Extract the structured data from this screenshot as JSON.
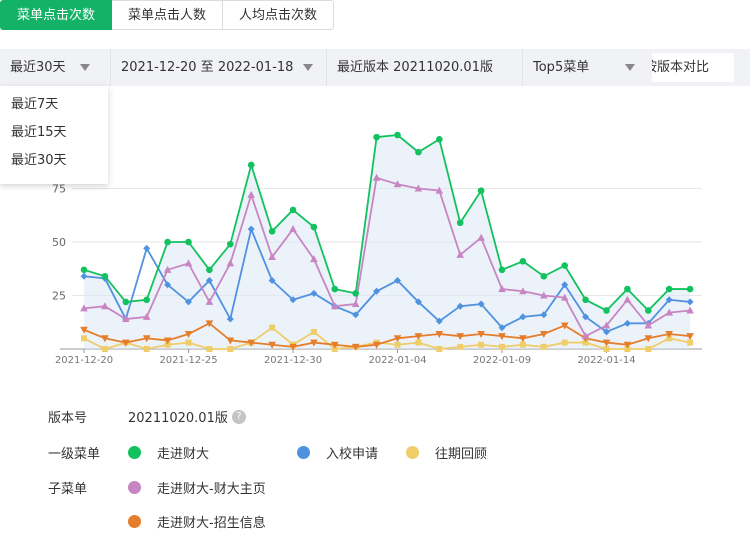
{
  "tabs": [
    {
      "label": "菜单点击次数",
      "active": true
    },
    {
      "label": "菜单点击人数",
      "active": false
    },
    {
      "label": "人均点击次数",
      "active": false
    }
  ],
  "filters": {
    "range": "最近30天",
    "dates": "2021-12-20 至 2022-01-18",
    "version": "最近版本 20211020.01版",
    "top": "Top5菜单",
    "compare": "按版本对比"
  },
  "dropdown": [
    "最近7天",
    "最近15天",
    "最近30天"
  ],
  "info": {
    "version_label": "版本号",
    "version_value": "20211020.01版",
    "help_icon": "question-icon",
    "level1_label": "一级菜单",
    "sub_label": "子菜单"
  },
  "chart_data": {
    "type": "line",
    "x": [
      "2021-12-20",
      "2021-12-21",
      "2021-12-22",
      "2021-12-23",
      "2021-12-24",
      "2021-12-25",
      "2021-12-26",
      "2021-12-27",
      "2021-12-28",
      "2021-12-29",
      "2021-12-30",
      "2021-12-31",
      "2022-01-01",
      "2022-01-02",
      "2022-01-03",
      "2022-01-04",
      "2022-01-05",
      "2022-01-06",
      "2022-01-07",
      "2022-01-08",
      "2022-01-09",
      "2022-01-10",
      "2022-01-11",
      "2022-01-12",
      "2022-01-13",
      "2022-01-14",
      "2022-01-15",
      "2022-01-16",
      "2022-01-17",
      "2022-01-18"
    ],
    "x_tick_labels": [
      "2021-12-20",
      "2021-12-25",
      "2021-12-30",
      "2022-01-04",
      "2022-01-09",
      "2022-01-14"
    ],
    "y_ticks": [
      25,
      50,
      75
    ],
    "ylim": [
      0,
      100
    ],
    "grid": true,
    "series": [
      {
        "name": "走进财大",
        "color": "#11c25e",
        "marker": "circle",
        "values": [
          37,
          34,
          22,
          23,
          50,
          50,
          37,
          49,
          86,
          55,
          65,
          57,
          28,
          26,
          99,
          100,
          92,
          98,
          59,
          74,
          37,
          41,
          34,
          39,
          23,
          18,
          28,
          18,
          28,
          28
        ]
      },
      {
        "name": "入校申请",
        "color": "#4f92e0",
        "marker": "diamond",
        "values": [
          34,
          33,
          14,
          47,
          30,
          22,
          32,
          14,
          56,
          32,
          23,
          26,
          20,
          16,
          27,
          32,
          22,
          13,
          20,
          21,
          10,
          15,
          16,
          30,
          15,
          8,
          12,
          12,
          23,
          22
        ]
      },
      {
        "name": "往期回顾",
        "color": "#efcd68",
        "marker": "square",
        "values": [
          5,
          0,
          3,
          0,
          2,
          3,
          0,
          0,
          3,
          10,
          2,
          8,
          0,
          1,
          3,
          2,
          3,
          0,
          1,
          2,
          1,
          2,
          1,
          3,
          3,
          0,
          0,
          0,
          5,
          3
        ]
      },
      {
        "name": "走进财大-财大主页",
        "color": "#c786c2",
        "marker": "triangle-up",
        "values": [
          19,
          20,
          14,
          15,
          37,
          40,
          22,
          40,
          72,
          43,
          56,
          42,
          20,
          21,
          80,
          77,
          75,
          74,
          44,
          52,
          28,
          27,
          25,
          24,
          6,
          11,
          23,
          11,
          17,
          18
        ]
      },
      {
        "name": "走进财大-招生信息",
        "color": "#e57d2a",
        "marker": "triangle-down",
        "values": [
          9,
          5,
          3,
          5,
          4,
          7,
          12,
          4,
          3,
          2,
          1,
          3,
          2,
          1,
          2,
          5,
          6,
          7,
          6,
          7,
          6,
          5,
          7,
          11,
          5,
          3,
          2,
          5,
          7,
          6
        ]
      }
    ]
  }
}
